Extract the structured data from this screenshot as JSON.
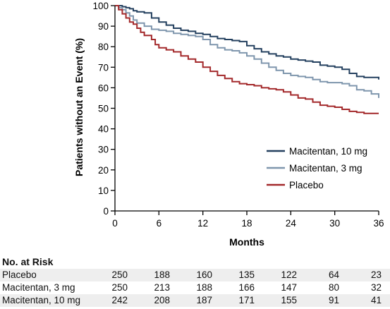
{
  "chart_data": {
    "type": "line",
    "step": true,
    "title": "",
    "xlabel": "Months",
    "ylabel": "Patients without an Event (%)",
    "xlim": [
      0,
      36
    ],
    "ylim": [
      0,
      100
    ],
    "xticks": [
      0,
      6,
      12,
      18,
      24,
      30,
      36
    ],
    "yticks": [
      0,
      10,
      20,
      30,
      40,
      50,
      60,
      70,
      80,
      90,
      100
    ],
    "grid": false,
    "legend_position": "right",
    "series": [
      {
        "name": "Macitentan, 10 mg",
        "color": "#24405f",
        "x": [
          0,
          1,
          1.5,
          2,
          2.5,
          3,
          4,
          5,
          6,
          7,
          8,
          9,
          10,
          11,
          12,
          13,
          14,
          15,
          16,
          17,
          18,
          19,
          20,
          21,
          22,
          23,
          24,
          25,
          26,
          27,
          28,
          29,
          30,
          31,
          32,
          33,
          34,
          35,
          36
        ],
        "y": [
          100,
          99.5,
          99,
          98.5,
          97.5,
          97,
          96.5,
          94,
          92,
          90.5,
          89,
          88,
          87.5,
          86.5,
          86,
          85,
          84,
          83.5,
          83,
          82.5,
          80.5,
          79,
          77.5,
          76.5,
          75.5,
          75,
          74,
          73.5,
          73,
          72.5,
          71,
          70.5,
          70,
          69,
          67,
          65.5,
          65,
          65,
          64
        ]
      },
      {
        "name": "Macitentan, 3 mg",
        "color": "#7f96ad",
        "x": [
          0,
          0.5,
          1,
          1.5,
          2,
          2.5,
          3,
          4,
          5,
          6,
          7,
          8,
          9,
          10,
          11,
          12,
          13,
          14,
          15,
          16,
          17,
          18,
          19,
          20,
          21,
          22,
          23,
          24,
          25,
          26,
          27,
          28,
          29,
          30,
          31,
          32,
          33,
          34,
          35,
          36
        ],
        "y": [
          100,
          99,
          98,
          96.5,
          95,
          93,
          91.5,
          90,
          88.5,
          88,
          87.5,
          86.5,
          86,
          85.5,
          85,
          83.5,
          81,
          79.5,
          78.5,
          78,
          77,
          75.5,
          74,
          72,
          70,
          68.5,
          67,
          66,
          65.5,
          65,
          64,
          63,
          62.5,
          62.5,
          62,
          61,
          59,
          58.5,
          57,
          55
        ]
      },
      {
        "name": "Placebo",
        "color": "#a3292b",
        "x": [
          0,
          0.5,
          1,
          1.5,
          2,
          2.5,
          3,
          3.5,
          4,
          5,
          5.5,
          6,
          7,
          8,
          9,
          10,
          11,
          12,
          13,
          14,
          15,
          16,
          17,
          18,
          19,
          20,
          21,
          22,
          23,
          24,
          25,
          26,
          27,
          28,
          29,
          30,
          31,
          32,
          33,
          34,
          35,
          36
        ],
        "y": [
          100,
          98,
          96,
          94,
          92,
          91,
          89,
          87,
          85.5,
          83.5,
          81,
          79.5,
          78.5,
          77.5,
          75.5,
          74,
          72.5,
          70,
          68,
          66,
          64.5,
          63,
          62,
          61.5,
          61,
          60,
          59.5,
          59,
          58,
          56.5,
          55,
          54.5,
          53,
          51.5,
          51,
          50.5,
          49.5,
          48.5,
          48,
          47.5,
          47.5,
          47.5
        ]
      }
    ]
  },
  "risk_table": {
    "title": "No. at Risk",
    "rows": [
      {
        "label": "Placebo",
        "values": [
          "250",
          "188",
          "160",
          "135",
          "122",
          "64",
          "23"
        ]
      },
      {
        "label": "Macitentan, 3 mg",
        "values": [
          "250",
          "213",
          "188",
          "166",
          "147",
          "80",
          "32"
        ]
      },
      {
        "label": "Macitentan, 10 mg",
        "values": [
          "242",
          "208",
          "187",
          "171",
          "155",
          "91",
          "41"
        ]
      }
    ]
  }
}
